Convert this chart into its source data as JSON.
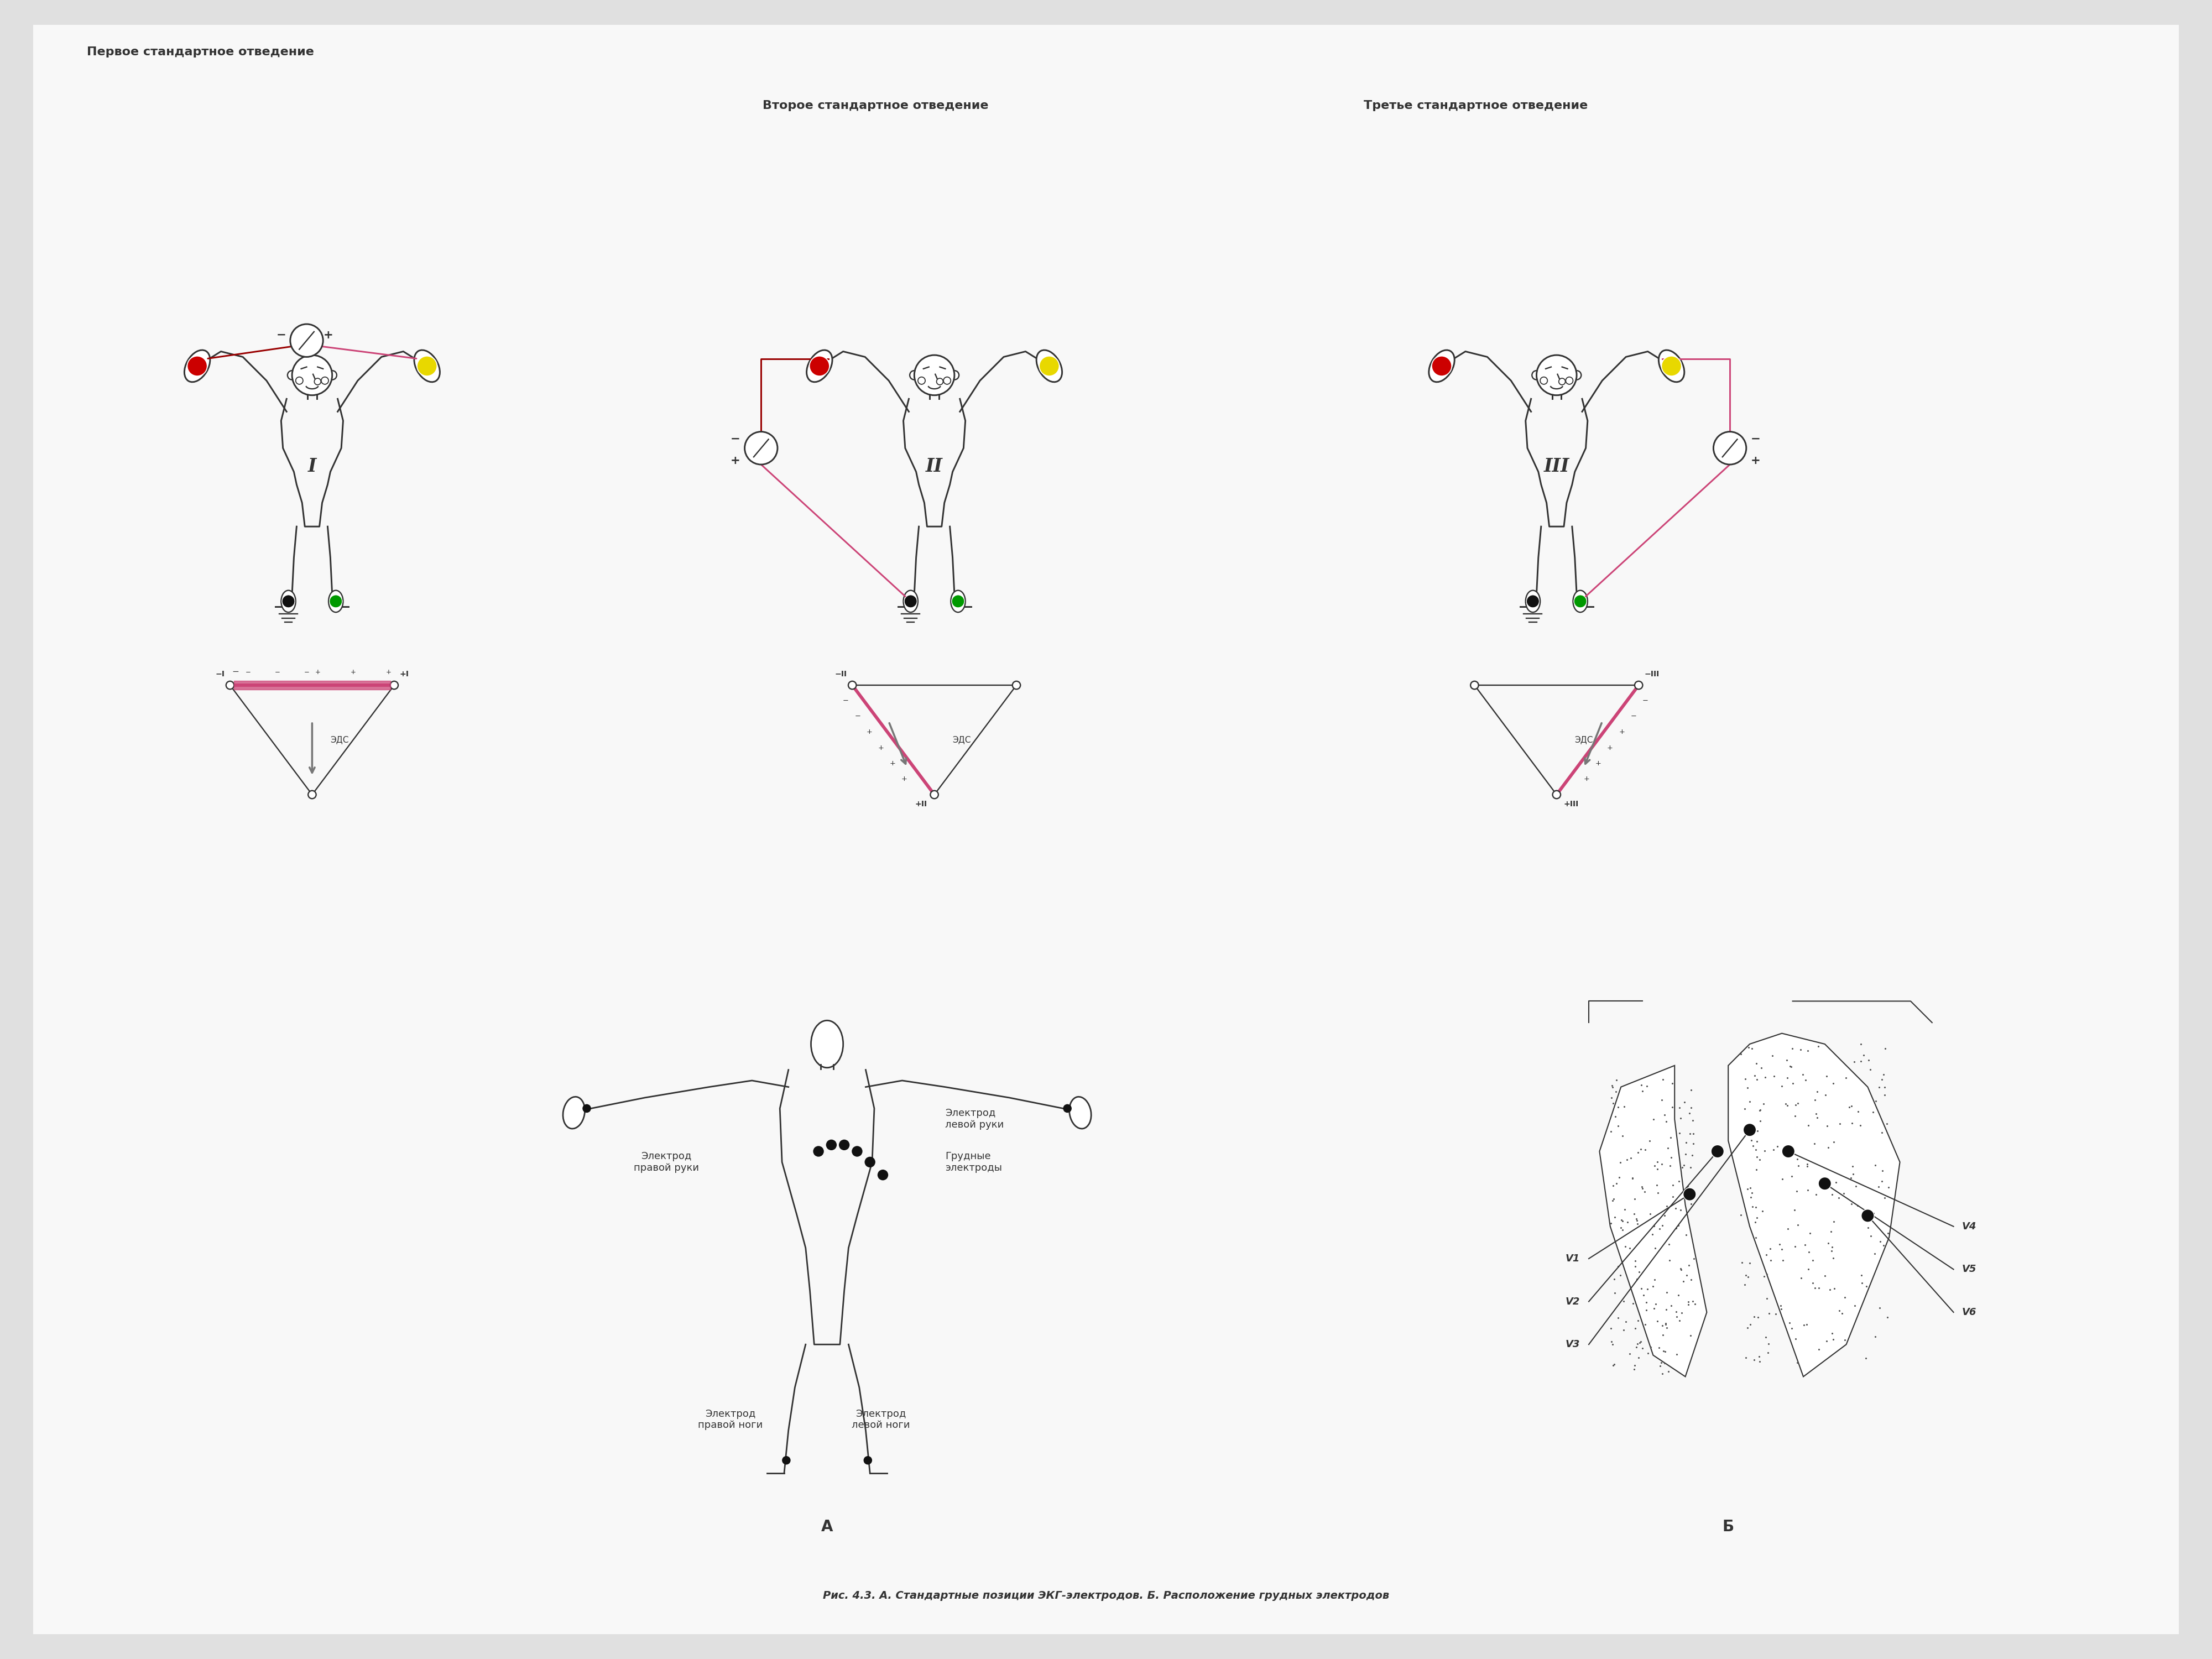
{
  "bg_color": "#e0e0e0",
  "card_bg": "#f8f8f8",
  "title1": "Первое стандартное отведение",
  "title2": "Второе стандартное отведение",
  "title3": "Третье стандартное отведение",
  "label_A": "А",
  "label_B": "Б",
  "caption": "Рис. 4.3. А. Стандартные позиции ЭКГ-электродов. Б. Расположение грудных электродов",
  "text_elect_right_arm": "Электрод\nправой руки",
  "text_elect_left_arm": "Электрод\nлевой руки",
  "text_elect_chest": "Грудные\nэлектроды",
  "text_elect_right_leg": "Электрод\nправой ноги",
  "text_elect_left_leg": "Электрод\nлевой ноги",
  "color_red": "#cc0000",
  "color_yellow": "#e8d800",
  "color_green": "#009900",
  "color_black": "#111111",
  "color_pink": "#cc4477",
  "color_dark": "#333333",
  "color_gray": "#777777",
  "color_light_gray": "#bbbbbb",
  "eds_text": "ЭДС"
}
